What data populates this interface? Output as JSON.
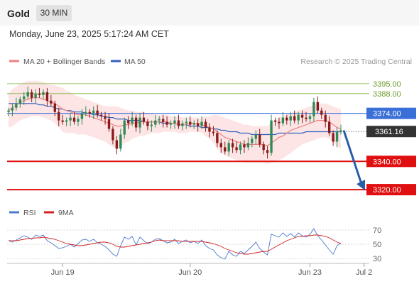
{
  "header": {
    "symbol": "Gold",
    "interval": "30 MIN",
    "datetime": "Monday, June 23, 2025 5:17:24 AM CET"
  },
  "legend": {
    "ma20_label": "MA 20 + Bollinger Bands",
    "ma50_label": "MA 50",
    "credit": "Research © 2025 Trading Central",
    "rsi_label": "RSI",
    "rsi_ma_label": "9MA"
  },
  "colors": {
    "ma20": "#f08080",
    "ma50": "#3060c0",
    "band_fill": "#fde0e0",
    "up": "#2e8b57",
    "down": "#8b1a1a",
    "support": "#e01010",
    "resistance": "#7cb342",
    "pivot": "#3a6fd8",
    "current": "#333333",
    "rsi": "#4a7bd0",
    "rsi_ma": "#d02020"
  },
  "chart_data": {
    "type": "candlestick",
    "price_ylim": [
      3312,
      3404
    ],
    "levels": [
      {
        "label": "3395.00",
        "value": 3395.0,
        "role": "resistance"
      },
      {
        "label": "3388.00",
        "value": 3388.0,
        "role": "resistance"
      },
      {
        "label": "3374.00",
        "value": 3374.0,
        "role": "pivot"
      },
      {
        "label": "3340.00",
        "value": 3340.0,
        "role": "support"
      },
      {
        "label": "3320.00",
        "value": 3320.0,
        "role": "support"
      }
    ],
    "current_price": {
      "label": "3361.16",
      "value": 3361.16
    },
    "projection": {
      "from": 3362,
      "to": 3320
    },
    "x_ticks": [
      "Jun 19",
      "Jun 20",
      "Jun 23",
      "Jul 2"
    ],
    "x_tick_index": [
      14,
      47,
      78,
      92
    ],
    "closes": [
      3376,
      3378,
      3381,
      3384,
      3386,
      3389,
      3385,
      3388,
      3387,
      3389,
      3383,
      3381,
      3375,
      3369,
      3368,
      3369,
      3371,
      3368,
      3370,
      3374,
      3375,
      3374,
      3376,
      3373,
      3372,
      3370,
      3363,
      3355,
      3349,
      3359,
      3369,
      3367,
      3371,
      3364,
      3371,
      3368,
      3365,
      3366,
      3369,
      3370,
      3368,
      3366,
      3367,
      3369,
      3365,
      3367,
      3368,
      3366,
      3367,
      3365,
      3368,
      3364,
      3361,
      3360,
      3353,
      3350,
      3347,
      3353,
      3350,
      3348,
      3352,
      3350,
      3353,
      3356,
      3359,
      3352,
      3348,
      3346,
      3369,
      3368,
      3367,
      3371,
      3369,
      3372,
      3369,
      3373,
      3371,
      3370,
      3372,
      3382,
      3376,
      3373,
      3368,
      3360,
      3354,
      3361,
      3362
    ],
    "ma20": [
      3376,
      3378,
      3380,
      3382,
      3383,
      3384,
      3385,
      3385,
      3385,
      3384,
      3383,
      3382,
      3381,
      3379,
      3377,
      3376,
      3375,
      3374,
      3373,
      3373,
      3373,
      3372,
      3371,
      3370,
      3369,
      3368,
      3367,
      3366,
      3365,
      3365,
      3366,
      3366,
      3367,
      3367,
      3368,
      3368,
      3368,
      3368,
      3368,
      3368,
      3368,
      3368,
      3367,
      3367,
      3366,
      3366,
      3366,
      3367,
      3367,
      3367,
      3366,
      3365,
      3364,
      3363,
      3361,
      3359,
      3357,
      3356,
      3355,
      3354,
      3353,
      3352,
      3352,
      3352,
      3352,
      3352,
      3352,
      3351,
      3353,
      3355,
      3357,
      3358,
      3360,
      3362,
      3363,
      3364,
      3365,
      3366,
      3367,
      3368,
      3369,
      3369,
      3369,
      3368,
      3366,
      3364,
      3363
    ],
    "ma50": [
      3381,
      3381,
      3381,
      3381,
      3381,
      3381,
      3381,
      3381,
      3380,
      3380,
      3379,
      3379,
      3378,
      3377,
      3377,
      3376,
      3376,
      3375,
      3375,
      3375,
      3374,
      3374,
      3373,
      3373,
      3372,
      3372,
      3371,
      3371,
      3370,
      3370,
      3370,
      3369,
      3369,
      3369,
      3369,
      3368,
      3368,
      3368,
      3368,
      3368,
      3367,
      3367,
      3367,
      3367,
      3366,
      3366,
      3366,
      3365,
      3365,
      3365,
      3364,
      3364,
      3364,
      3363,
      3363,
      3362,
      3362,
      3361,
      3361,
      3361,
      3360,
      3360,
      3360,
      3359,
      3359,
      3359,
      3359,
      3359,
      3359,
      3359,
      3360,
      3360,
      3360,
      3360,
      3360,
      3360,
      3360,
      3361,
      3361,
      3361,
      3361,
      3361,
      3361,
      3361,
      3361,
      3361,
      3361
    ],
    "bb_upper": [
      3388,
      3391,
      3393,
      3395,
      3396,
      3397,
      3397,
      3397,
      3397,
      3396,
      3395,
      3394,
      3394,
      3393,
      3392,
      3390,
      3389,
      3387,
      3386,
      3385,
      3384,
      3383,
      3382,
      3381,
      3380,
      3379,
      3379,
      3379,
      3379,
      3378,
      3377,
      3376,
      3376,
      3375,
      3375,
      3375,
      3374,
      3374,
      3373,
      3373,
      3373,
      3373,
      3372,
      3372,
      3372,
      3371,
      3371,
      3371,
      3371,
      3371,
      3371,
      3372,
      3372,
      3373,
      3373,
      3372,
      3371,
      3370,
      3369,
      3368,
      3367,
      3366,
      3366,
      3365,
      3365,
      3365,
      3365,
      3365,
      3367,
      3369,
      3371,
      3372,
      3373,
      3374,
      3375,
      3376,
      3377,
      3378,
      3379,
      3380,
      3381,
      3381,
      3381,
      3380,
      3379,
      3378,
      3377
    ],
    "bb_lower": [
      3364,
      3365,
      3367,
      3369,
      3370,
      3371,
      3372,
      3372,
      3372,
      3371,
      3370,
      3369,
      3367,
      3364,
      3361,
      3360,
      3360,
      3360,
      3359,
      3359,
      3359,
      3358,
      3357,
      3356,
      3355,
      3354,
      3352,
      3350,
      3349,
      3350,
      3353,
      3354,
      3356,
      3357,
      3358,
      3358,
      3359,
      3360,
      3360,
      3360,
      3361,
      3361,
      3361,
      3361,
      3360,
      3360,
      3360,
      3361,
      3361,
      3361,
      3360,
      3358,
      3356,
      3353,
      3349,
      3346,
      3344,
      3343,
      3342,
      3341,
      3340,
      3339,
      3339,
      3339,
      3339,
      3339,
      3339,
      3338,
      3339,
      3340,
      3341,
      3342,
      3344,
      3346,
      3348,
      3350,
      3352,
      3353,
      3354,
      3355,
      3356,
      3357,
      3357,
      3356,
      3354,
      3351,
      3349
    ],
    "rsi_levels": [
      70,
      50,
      30
    ],
    "rsi_ylim": [
      20,
      80
    ],
    "rsi": [
      55,
      53,
      56,
      59,
      62,
      60,
      57,
      63,
      61,
      63,
      55,
      52,
      48,
      44,
      45,
      47,
      50,
      46,
      51,
      56,
      57,
      54,
      57,
      52,
      50,
      47,
      42,
      36,
      33,
      48,
      60,
      57,
      61,
      49,
      60,
      55,
      51,
      53,
      57,
      58,
      55,
      52,
      53,
      57,
      51,
      54,
      56,
      52,
      54,
      51,
      56,
      48,
      44,
      42,
      35,
      31,
      29,
      40,
      35,
      33,
      40,
      37,
      42,
      47,
      53,
      44,
      39,
      35,
      64,
      62,
      60,
      66,
      61,
      65,
      60,
      66,
      62,
      60,
      64,
      72,
      62,
      56,
      49,
      42,
      36,
      48,
      52
    ],
    "rsi_ma": [
      55,
      55,
      55,
      56,
      57,
      58,
      58,
      59,
      59,
      60,
      59,
      58,
      57,
      55,
      53,
      51,
      50,
      49,
      48,
      48,
      49,
      50,
      51,
      52,
      53,
      53,
      52,
      50,
      47,
      46,
      46,
      47,
      48,
      49,
      50,
      51,
      52,
      53,
      55,
      56,
      55,
      55,
      55,
      55,
      55,
      54,
      54,
      54,
      54,
      54,
      54,
      53,
      52,
      51,
      49,
      47,
      44,
      42,
      40,
      38,
      37,
      36,
      36,
      37,
      38,
      39,
      40,
      40,
      43,
      46,
      49,
      52,
      55,
      57,
      59,
      61,
      61,
      62,
      62,
      63,
      63,
      62,
      61,
      59,
      56,
      53,
      51
    ]
  }
}
